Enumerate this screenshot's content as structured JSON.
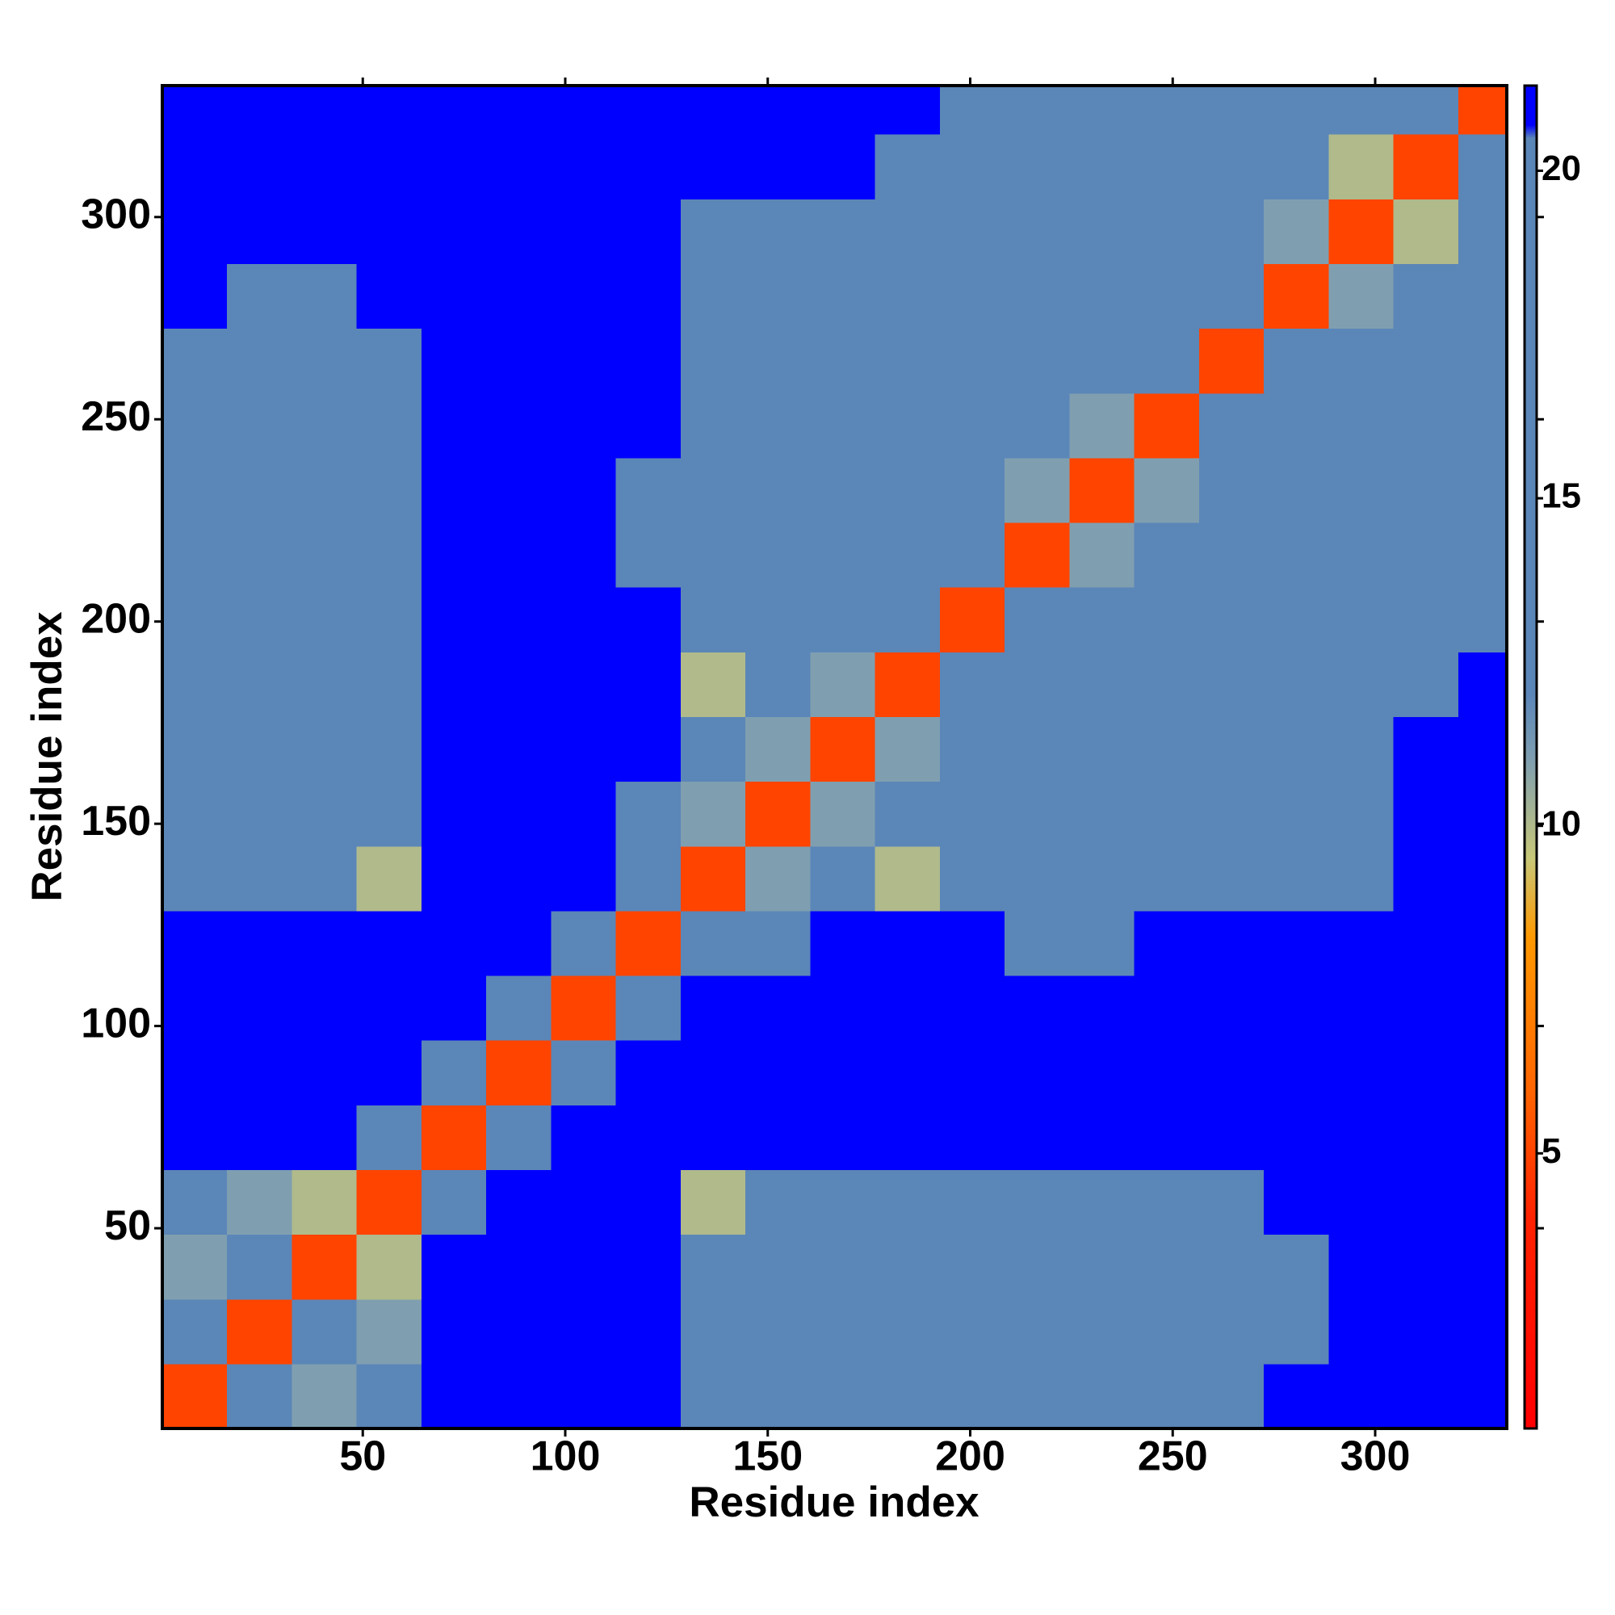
{
  "chart_data": {
    "type": "heatmap",
    "xlabel": "Residue index",
    "ylabel": "Residue index",
    "x_edges": [
      0.5,
      16.5,
      32.5,
      48.5,
      64.5,
      80.5,
      96.5,
      112.5,
      128.5,
      144.5,
      160.5,
      176.5,
      192.5,
      208.5,
      224.5,
      240.5,
      256.5,
      272.5,
      288.5,
      304.5,
      320.5,
      332.5
    ],
    "y_edges": [
      0.5,
      16.5,
      32.5,
      48.5,
      64.5,
      80.5,
      96.5,
      112.5,
      128.5,
      144.5,
      160.5,
      176.5,
      192.5,
      208.5,
      224.5,
      240.5,
      256.5,
      272.5,
      288.5,
      304.5,
      320.5,
      332.5
    ],
    "z": [
      [
        5,
        12,
        11,
        13,
        24,
        25,
        25,
        25,
        16,
        15,
        15,
        16,
        17,
        17,
        18,
        18,
        19,
        21,
        21,
        22,
        23
      ],
      [
        12,
        5,
        12,
        11,
        23,
        25,
        25,
        25,
        15,
        14,
        15,
        16,
        17,
        17,
        18,
        18,
        18,
        20,
        21,
        21,
        22
      ],
      [
        11,
        12,
        5,
        10,
        22,
        25,
        25,
        25,
        13,
        15,
        14,
        15,
        16,
        16,
        17,
        18,
        18,
        20,
        21,
        21,
        22
      ],
      [
        13,
        11,
        10,
        5,
        16,
        25,
        25,
        24,
        10,
        15,
        16,
        16,
        17,
        17,
        16,
        18,
        19,
        21,
        21,
        22,
        23
      ],
      [
        24,
        23,
        22,
        16,
        5,
        14,
        25,
        25,
        24,
        24,
        25,
        25,
        25,
        25,
        25,
        25,
        25,
        25,
        25,
        25,
        25
      ],
      [
        25,
        25,
        25,
        25,
        14,
        5,
        14,
        25,
        25,
        25,
        25,
        25,
        25,
        25,
        25,
        25,
        25,
        25,
        25,
        25,
        25
      ],
      [
        25,
        25,
        25,
        25,
        25,
        14,
        5,
        14,
        25,
        25,
        25,
        25,
        25,
        25,
        25,
        25,
        25,
        25,
        25,
        25,
        25
      ],
      [
        25,
        25,
        25,
        24,
        25,
        25,
        14,
        5,
        12,
        20,
        21,
        22,
        21,
        20,
        20,
        21,
        22,
        23,
        24,
        24,
        25
      ],
      [
        16,
        15,
        13,
        10,
        24,
        25,
        25,
        12,
        5,
        11,
        12,
        10,
        17,
        18,
        18,
        18,
        18,
        19,
        20,
        21,
        22
      ],
      [
        15,
        14,
        15,
        15,
        24,
        25,
        25,
        20,
        11,
        5,
        11,
        12,
        17,
        17,
        18,
        18,
        19,
        19,
        20,
        21,
        21
      ],
      [
        15,
        15,
        14,
        16,
        25,
        25,
        25,
        21,
        12,
        11,
        5,
        11,
        15,
        17,
        17,
        18,
        18,
        19,
        20,
        21,
        21
      ],
      [
        16,
        16,
        15,
        16,
        25,
        25,
        25,
        22,
        10,
        12,
        11,
        5,
        12,
        15,
        16,
        17,
        17,
        18,
        19,
        20,
        21
      ],
      [
        17,
        17,
        16,
        17,
        25,
        25,
        25,
        21,
        17,
        17,
        15,
        12,
        5,
        12,
        14,
        15,
        16,
        15,
        16,
        17,
        18
      ],
      [
        17,
        17,
        16,
        17,
        25,
        25,
        25,
        20,
        18,
        17,
        17,
        15,
        12,
        5,
        11,
        12,
        14,
        15,
        16,
        16,
        17
      ],
      [
        18,
        18,
        17,
        16,
        25,
        25,
        25,
        20,
        18,
        18,
        17,
        16,
        14,
        11,
        5,
        11,
        13,
        14,
        15,
        14,
        16
      ],
      [
        18,
        18,
        18,
        18,
        25,
        25,
        25,
        21,
        18,
        18,
        18,
        17,
        15,
        12,
        11,
        5,
        12,
        14,
        14,
        13,
        16
      ],
      [
        19,
        18,
        18,
        19,
        25,
        25,
        25,
        22,
        18,
        19,
        18,
        17,
        16,
        14,
        13,
        12,
        5,
        12,
        14,
        15,
        16
      ],
      [
        21,
        20,
        20,
        21,
        25,
        25,
        25,
        23,
        19,
        19,
        19,
        18,
        15,
        15,
        14,
        14,
        12,
        5,
        11,
        13,
        15
      ],
      [
        21,
        21,
        21,
        21,
        25,
        25,
        25,
        24,
        20,
        20,
        20,
        19,
        16,
        16,
        15,
        14,
        14,
        11,
        5,
        10,
        13
      ],
      [
        22,
        21,
        21,
        22,
        25,
        25,
        25,
        24,
        21,
        21,
        21,
        20,
        17,
        16,
        14,
        13,
        15,
        13,
        10,
        5,
        12
      ],
      [
        23,
        22,
        22,
        23,
        25,
        25,
        25,
        25,
        22,
        21,
        21,
        21,
        18,
        17,
        16,
        16,
        16,
        15,
        13,
        12,
        5
      ]
    ],
    "xlim": [
      0.5,
      332.5
    ],
    "ylim": [
      0.5,
      332.5
    ],
    "xticks": [
      50,
      100,
      150,
      200,
      250,
      300
    ],
    "yticks": [
      50,
      100,
      150,
      200,
      250,
      300
    ],
    "clim": [
      0.8,
      21.3
    ],
    "cticks": [
      5,
      10,
      15,
      20
    ],
    "colorscale": [
      [
        0.8,
        "#ff0000"
      ],
      [
        4,
        "#ff2200"
      ],
      [
        6,
        "#ff6600"
      ],
      [
        8.3,
        "#ff9900"
      ],
      [
        9.5,
        "#c8c878"
      ],
      [
        11,
        "#7f9fb0"
      ],
      [
        12,
        "#5b86b8"
      ],
      [
        20.5,
        "#5b86b8"
      ],
      [
        20.7,
        "#0000ff"
      ],
      [
        21.3,
        "#0000ff"
      ]
    ],
    "colorbar": true
  }
}
